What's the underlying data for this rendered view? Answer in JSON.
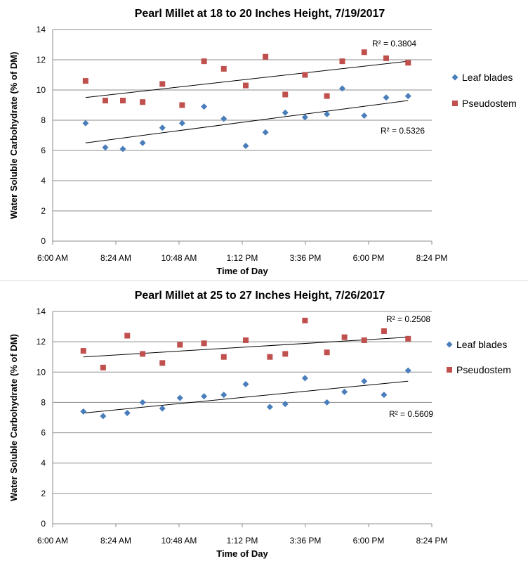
{
  "chart_data": [
    {
      "type": "scatter",
      "title": "Pearl Millet at 18 to 20 Inches Height, 7/19/2017",
      "xlabel": "Time of Day",
      "ylabel": "Water Soluble Carbohydrate (% of DM)",
      "x_ticks": [
        "6:00 AM",
        "8:24 AM",
        "10:48 AM",
        "1:12 PM",
        "3:36 PM",
        "6:00 PM",
        "8:24 PM"
      ],
      "xlim_minutes": [
        360,
        1224
      ],
      "ylim": [
        0,
        14
      ],
      "y_ticks": [
        0,
        2,
        4,
        6,
        8,
        10,
        12,
        14
      ],
      "grid": "horizontal",
      "legend": "right",
      "series": [
        {
          "name": "Leaf blades",
          "color": "#4a7ebb",
          "marker": "diamond",
          "x": [
            "7:15 AM",
            "8:00 AM",
            "8:40 AM",
            "9:25 AM",
            "10:10 AM",
            "10:55 AM",
            "11:45 AM",
            "12:30 PM",
            "1:20 PM",
            "2:05 PM",
            "2:50 PM",
            "3:35 PM",
            "4:25 PM",
            "5:00 PM",
            "5:50 PM",
            "6:40 PM",
            "7:30 PM"
          ],
          "values": [
            7.8,
            6.2,
            6.1,
            6.5,
            7.5,
            7.8,
            8.9,
            8.1,
            6.3,
            7.2,
            8.5,
            8.2,
            8.4,
            10.1,
            8.3,
            9.5,
            9.6
          ],
          "trendline": {
            "type": "linear",
            "start": 6.5,
            "end": 9.3,
            "r2_label": "R² = 0.5326"
          }
        },
        {
          "name": "Pseudostem",
          "color": "#c0504d",
          "marker": "square",
          "x": [
            "7:15 AM",
            "8:00 AM",
            "8:40 AM",
            "9:25 AM",
            "10:10 AM",
            "10:55 AM",
            "11:45 AM",
            "12:30 PM",
            "1:20 PM",
            "2:05 PM",
            "2:50 PM",
            "3:35 PM",
            "4:25 PM",
            "5:00 PM",
            "5:50 PM",
            "6:40 PM",
            "7:30 PM"
          ],
          "values": [
            10.6,
            9.3,
            9.3,
            9.2,
            10.4,
            9.0,
            11.9,
            11.4,
            10.3,
            12.2,
            9.7,
            11.0,
            9.6,
            11.9,
            12.5,
            12.1,
            11.8
          ],
          "trendline": {
            "type": "linear",
            "start": 9.5,
            "end": 11.9,
            "r2_label": "R² = 0.3804"
          }
        }
      ]
    },
    {
      "type": "scatter",
      "title": "Pearl Millet at 25 to 27 Inches Height, 7/26/2017",
      "xlabel": "Time of Day",
      "ylabel": "Water Soluble Carbohydrate (% of DM)",
      "x_ticks": [
        "6:00 AM",
        "8:24 AM",
        "10:48 AM",
        "1:12 PM",
        "3:36 PM",
        "6:00 PM",
        "8:24 PM"
      ],
      "xlim_minutes": [
        360,
        1224
      ],
      "ylim": [
        0,
        14
      ],
      "y_ticks": [
        0,
        2,
        4,
        6,
        8,
        10,
        12,
        14
      ],
      "grid": "horizontal",
      "legend": "right",
      "series": [
        {
          "name": "Leaf blades",
          "color": "#4a7ebb",
          "marker": "diamond",
          "x": [
            "7:10 AM",
            "7:55 AM",
            "8:50 AM",
            "9:25 AM",
            "10:10 AM",
            "10:50 AM",
            "11:45 AM",
            "12:30 PM",
            "1:20 PM",
            "2:15 PM",
            "2:50 PM",
            "3:35 PM",
            "4:25 PM",
            "5:05 PM",
            "5:50 PM",
            "6:35 PM",
            "7:30 PM"
          ],
          "values": [
            7.4,
            7.1,
            7.3,
            8.0,
            7.6,
            8.3,
            8.4,
            8.5,
            9.2,
            7.7,
            7.9,
            9.6,
            8.0,
            8.7,
            9.4,
            8.5,
            10.1
          ],
          "trendline": {
            "type": "linear",
            "start": 7.3,
            "end": 9.4,
            "r2_label": "R² = 0.5609"
          }
        },
        {
          "name": "Pseudostem",
          "color": "#c0504d",
          "marker": "square",
          "x": [
            "7:10 AM",
            "7:55 AM",
            "8:50 AM",
            "9:25 AM",
            "10:10 AM",
            "10:50 AM",
            "11:45 AM",
            "12:30 PM",
            "1:20 PM",
            "2:15 PM",
            "2:50 PM",
            "3:35 PM",
            "4:25 PM",
            "5:05 PM",
            "5:50 PM",
            "6:35 PM",
            "7:30 PM"
          ],
          "values": [
            11.4,
            10.3,
            12.4,
            11.2,
            10.6,
            11.8,
            11.9,
            11.0,
            12.1,
            11.0,
            11.2,
            13.4,
            11.3,
            12.3,
            12.1,
            12.7,
            12.2
          ],
          "trendline": {
            "type": "linear",
            "start": 11.0,
            "end": 12.3,
            "r2_label": "R² = 0.2508"
          }
        }
      ]
    }
  ]
}
